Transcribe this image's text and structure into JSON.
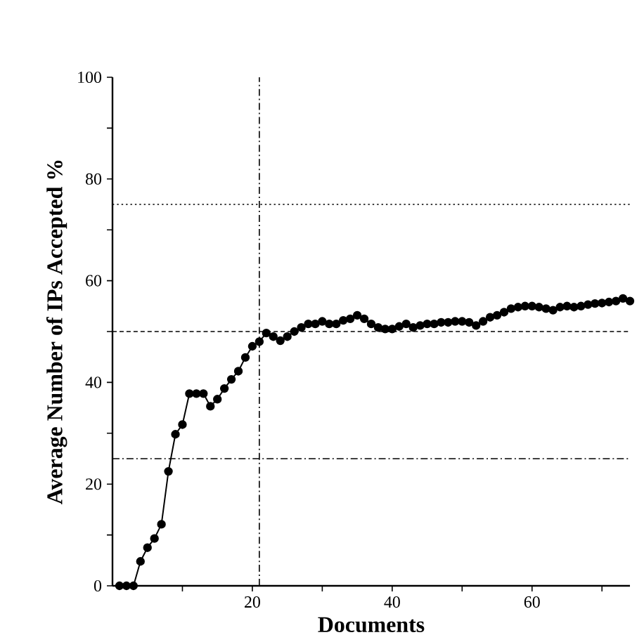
{
  "chart_data": {
    "type": "line",
    "xlabel": "Documents",
    "ylabel": "Average Number of IPs Accepted %",
    "x": [
      1,
      2,
      3,
      4,
      5,
      6,
      7,
      8,
      9,
      10,
      11,
      12,
      13,
      14,
      15,
      16,
      17,
      18,
      19,
      20,
      21,
      22,
      23,
      24,
      25,
      26,
      27,
      28,
      29,
      30,
      31,
      32,
      33,
      34,
      35,
      36,
      37,
      38,
      39,
      40,
      41,
      42,
      43,
      44,
      45,
      46,
      47,
      48,
      49,
      50,
      51,
      52,
      53,
      54,
      55,
      56,
      57,
      58,
      59,
      60,
      61,
      62,
      63,
      64,
      65,
      66,
      67,
      68,
      69,
      70,
      71,
      72,
      73,
      74
    ],
    "series": [
      {
        "color": "#000000",
        "values": [
          0,
          0,
          0,
          4.8,
          7.5,
          9.3,
          12.1,
          22.5,
          29.8,
          31.7,
          37.8,
          37.8,
          37.8,
          35.3,
          36.7,
          38.8,
          40.6,
          42.2,
          44.9,
          47.1,
          48.0,
          49.7,
          49,
          48.2,
          49,
          50,
          50.8,
          51.5,
          51.5,
          52,
          51.5,
          51.5,
          52.2,
          52.5,
          53.2,
          52.5,
          51.5,
          50.8,
          50.5,
          50.5,
          51,
          51.5,
          50.8,
          51.2,
          51.5,
          51.5,
          51.8,
          51.8,
          52,
          52,
          51.8,
          51.2,
          52,
          52.8,
          53.2,
          53.8,
          54.5,
          54.8,
          55,
          55,
          54.8,
          54.5,
          54.2,
          54.8,
          55,
          54.8,
          55,
          55.3,
          55.5,
          55.6,
          55.8,
          56,
          56.5,
          56
        ]
      }
    ],
    "marker": "circle",
    "line_style": "solid",
    "xlim": [
      0,
      74
    ],
    "ylim": [
      0,
      100
    ],
    "xticks": [
      {
        "value": 10,
        "label": null
      },
      20,
      {
        "value": 30,
        "label": null
      },
      40,
      {
        "value": 50,
        "label": null
      },
      60,
      {
        "value": 70,
        "label": null
      }
    ],
    "yticks": [
      0,
      {
        "value": 10,
        "label": null
      },
      20,
      {
        "value": 30,
        "label": null
      },
      40,
      {
        "value": 50,
        "label": null
      },
      60,
      {
        "value": 70,
        "label": null
      },
      80,
      {
        "value": 90,
        "label": null
      },
      100
    ],
    "ref_lines": [
      {
        "axis": "y",
        "value": 75,
        "line_style": "dotted",
        "color": "#000000"
      },
      {
        "axis": "y",
        "value": 50,
        "line_style": "dashed",
        "color": "#000000"
      },
      {
        "axis": "y",
        "value": 25,
        "line_style": "dashdot",
        "color": "#000000"
      },
      {
        "axis": "x",
        "value": 21,
        "line_style": "dashdot",
        "color": "#000000"
      }
    ]
  }
}
